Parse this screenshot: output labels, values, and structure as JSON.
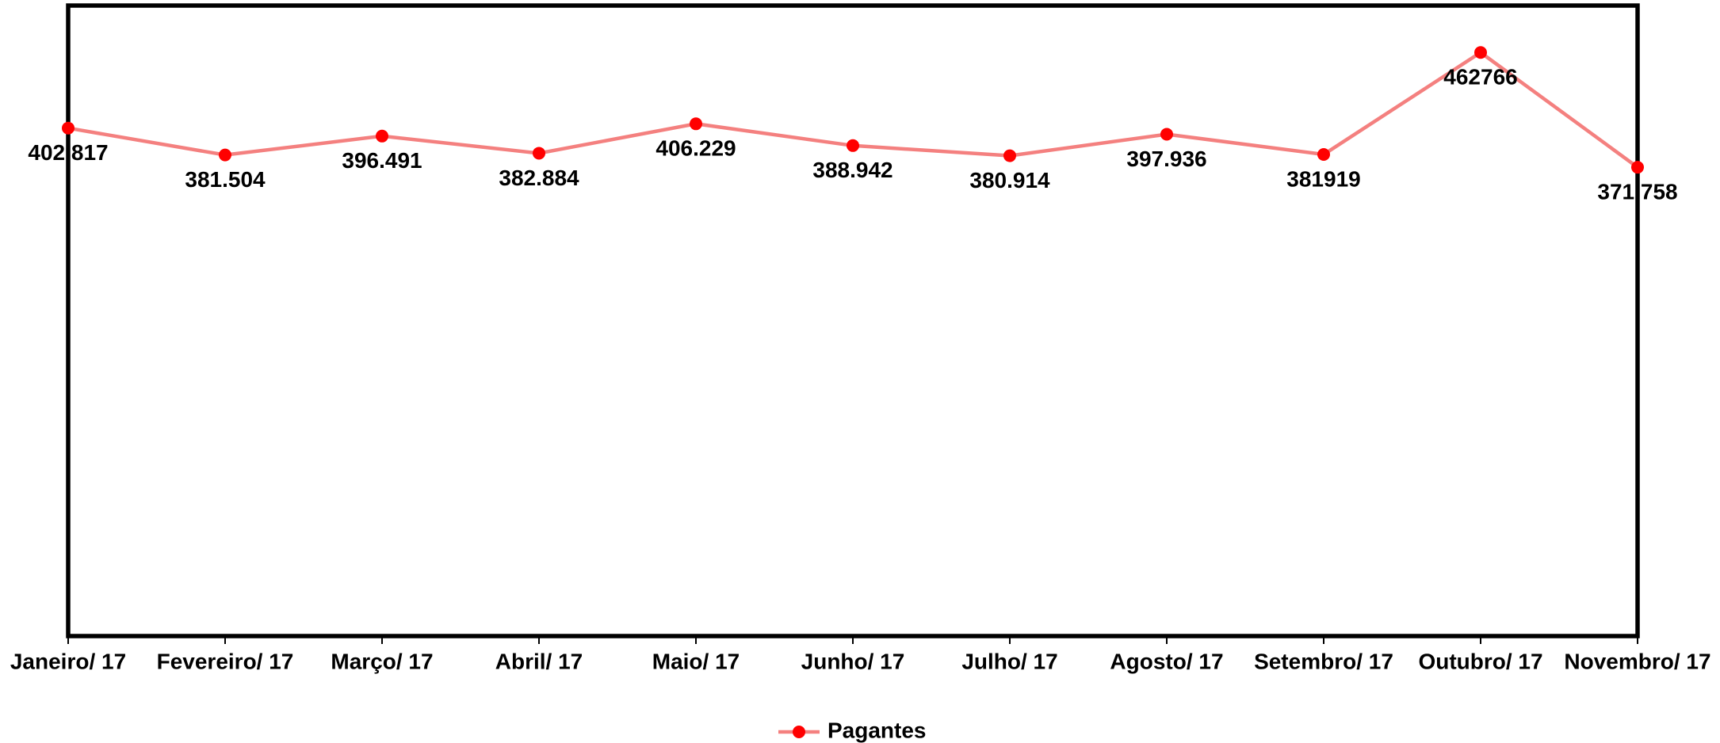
{
  "chart_data": {
    "type": "line",
    "categories": [
      "Janeiro/ 17",
      "Fevereiro/ 17",
      "Março/ 17",
      "Abril/ 17",
      "Maio/ 17",
      "Junho/ 17",
      "Julho/ 17",
      "Agosto/ 17",
      "Setembro/ 17",
      "Outubro/ 17",
      "Novembro/ 17"
    ],
    "series": [
      {
        "name": "Pagantes",
        "color": "#f4807f",
        "marker_color": "#ff0000",
        "values": [
          402817,
          381504,
          396491,
          382884,
          406229,
          388942,
          380914,
          397936,
          381919,
          462766,
          371758
        ],
        "value_labels": [
          "402.817",
          "381.504",
          "396.491",
          "382.884",
          "406.229",
          "388.942",
          "380.914",
          "397.936",
          "381919",
          "462766",
          "371.758"
        ]
      }
    ],
    "ylim": [
      0,
      500000
    ],
    "legend": "bottom"
  }
}
